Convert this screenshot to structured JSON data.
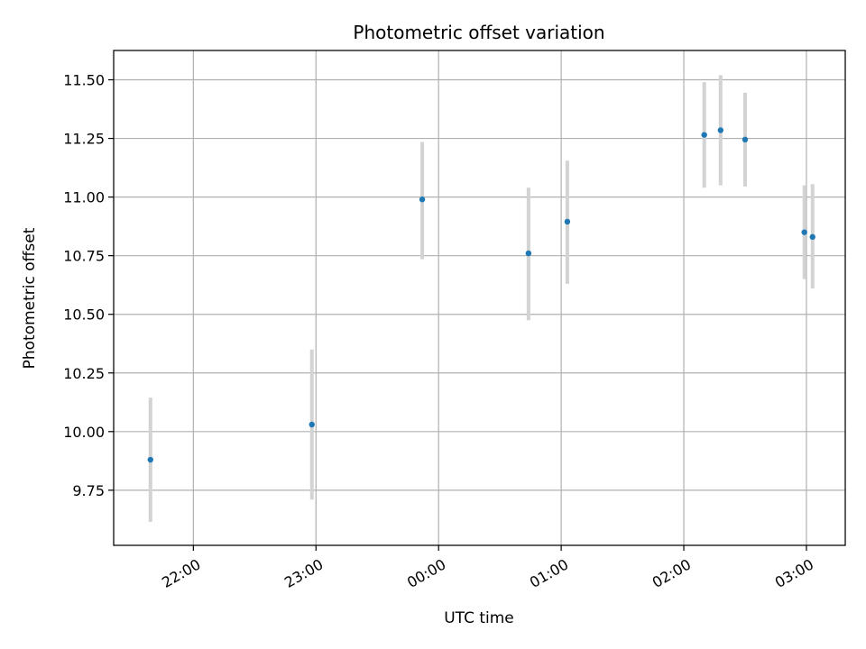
{
  "chart_data": {
    "type": "scatter",
    "title": "Photometric offset variation",
    "xlabel": "UTC time",
    "ylabel": "Photometric offset",
    "grid": true,
    "legend": "none",
    "colors": {
      "point": "#1f77b4",
      "errorbar": "#d3d3d3",
      "grid": "#b0b0b0"
    },
    "xlim": [
      "21:21",
      "03:19"
    ],
    "ylim": [
      9.515,
      11.625
    ],
    "x_ticks": [
      "22:00",
      "23:00",
      "00:00",
      "01:00",
      "02:00",
      "03:00"
    ],
    "y_ticks": [
      "9.75",
      "10.00",
      "10.25",
      "10.50",
      "10.75",
      "11.00",
      "11.25",
      "11.50"
    ],
    "points": [
      {
        "x": "21:39",
        "y": 9.88,
        "yerr_low": 9.615,
        "yerr_high": 10.145
      },
      {
        "x": "22:58",
        "y": 10.03,
        "yerr_low": 9.71,
        "yerr_high": 10.35
      },
      {
        "x": "23:52",
        "y": 10.99,
        "yerr_low": 10.735,
        "yerr_high": 11.235
      },
      {
        "x": "00:44",
        "y": 10.76,
        "yerr_low": 10.475,
        "yerr_high": 11.04
      },
      {
        "x": "01:03",
        "y": 10.895,
        "yerr_low": 10.63,
        "yerr_high": 11.155
      },
      {
        "x": "02:10",
        "y": 11.265,
        "yerr_low": 11.04,
        "yerr_high": 11.49
      },
      {
        "x": "02:18",
        "y": 11.285,
        "yerr_low": 11.05,
        "yerr_high": 11.52
      },
      {
        "x": "02:30",
        "y": 11.245,
        "yerr_low": 11.045,
        "yerr_high": 11.445
      },
      {
        "x": "02:59",
        "y": 10.85,
        "yerr_low": 10.65,
        "yerr_high": 11.05
      },
      {
        "x": "03:03",
        "y": 10.83,
        "yerr_low": 10.61,
        "yerr_high": 11.055
      }
    ]
  }
}
